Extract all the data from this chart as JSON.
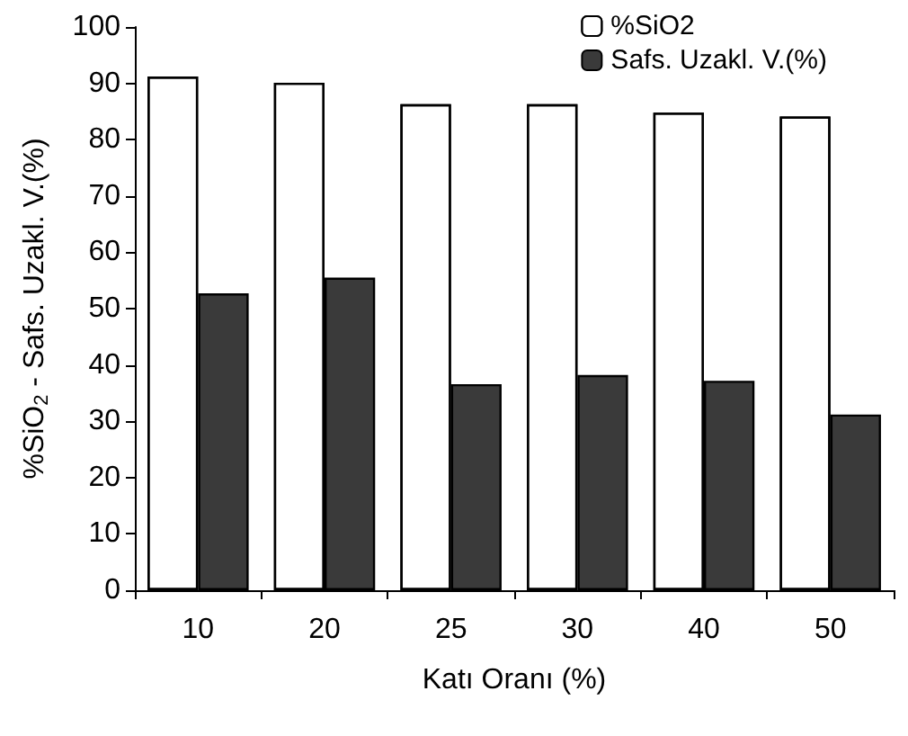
{
  "chart_data": {
    "type": "bar",
    "xlabel": "Katı Oranı (%)",
    "ylabel": "%SiO$_{2}$ - Safs. Uzakl. V.(%)",
    "categories": [
      "10",
      "20",
      "25",
      "30",
      "40",
      "50"
    ],
    "series": [
      {
        "name": "%SiO2",
        "color": "#ffffff",
        "values": [
          91.2,
          90.1,
          86.3,
          86.3,
          84.8,
          84.1
        ]
      },
      {
        "name": "Safs. Uzakl. V.(%)",
        "color": "#3a3a3a",
        "values": [
          52.7,
          55.5,
          36.6,
          38.2,
          37.2,
          31.2
        ]
      }
    ],
    "ylim": [
      0,
      100
    ],
    "yticks": [
      0,
      10,
      20,
      30,
      40,
      50,
      60,
      70,
      80,
      90,
      100
    ],
    "grid": false,
    "legend": "top right"
  }
}
